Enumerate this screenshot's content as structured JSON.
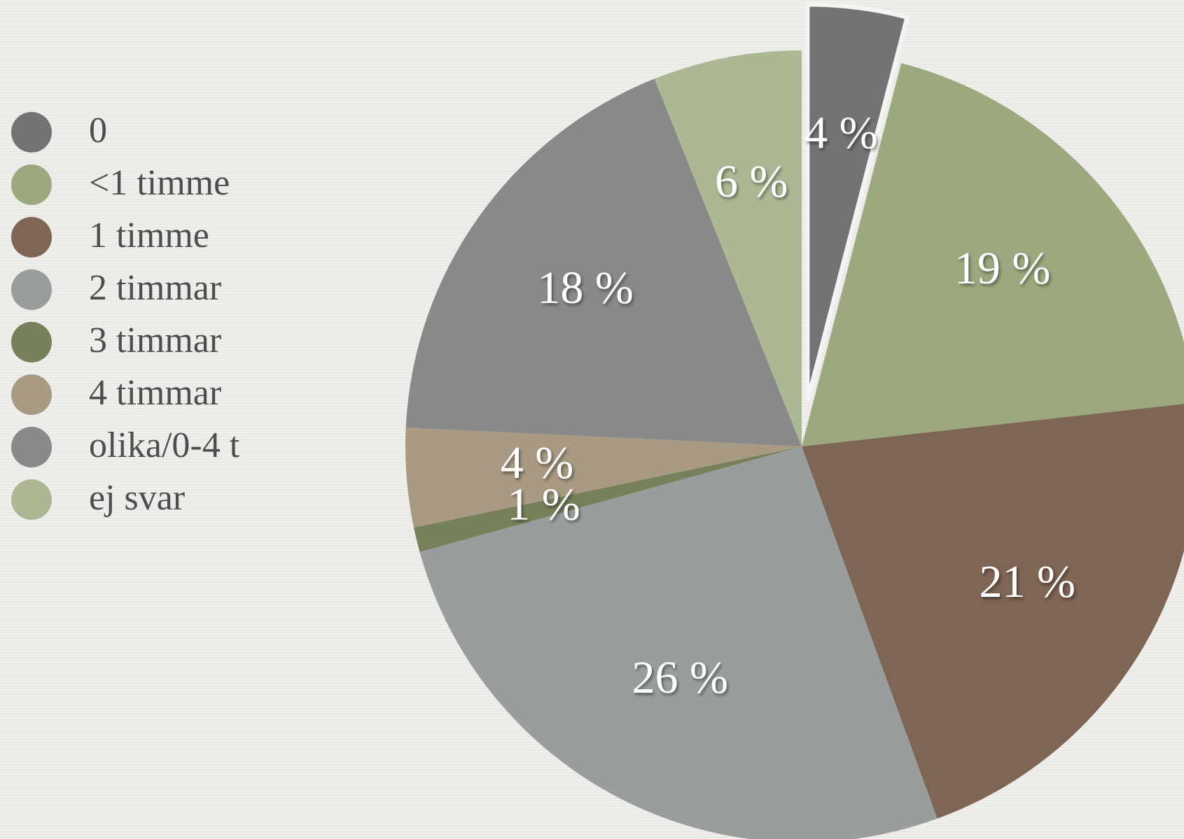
{
  "chart_data": {
    "type": "pie",
    "categories": [
      "0",
      "<1 timme",
      "1 timme",
      "2 timmar",
      "3 timmar",
      "4 timmar",
      "olika/0-4 t",
      "ej svar"
    ],
    "values": [
      4,
      19,
      21,
      26,
      1,
      4,
      18,
      6
    ],
    "value_labels": [
      "4 %",
      "19 %",
      "21 %",
      "26 %",
      "1 %",
      "4 %",
      "18 %",
      "6 %"
    ],
    "colors": [
      "#737373",
      "#9ca97f",
      "#7e6554",
      "#999d9d",
      "#76805a",
      "#a89a83",
      "#898989",
      "#acb793"
    ],
    "exploded": [
      0
    ],
    "legend": "left"
  }
}
